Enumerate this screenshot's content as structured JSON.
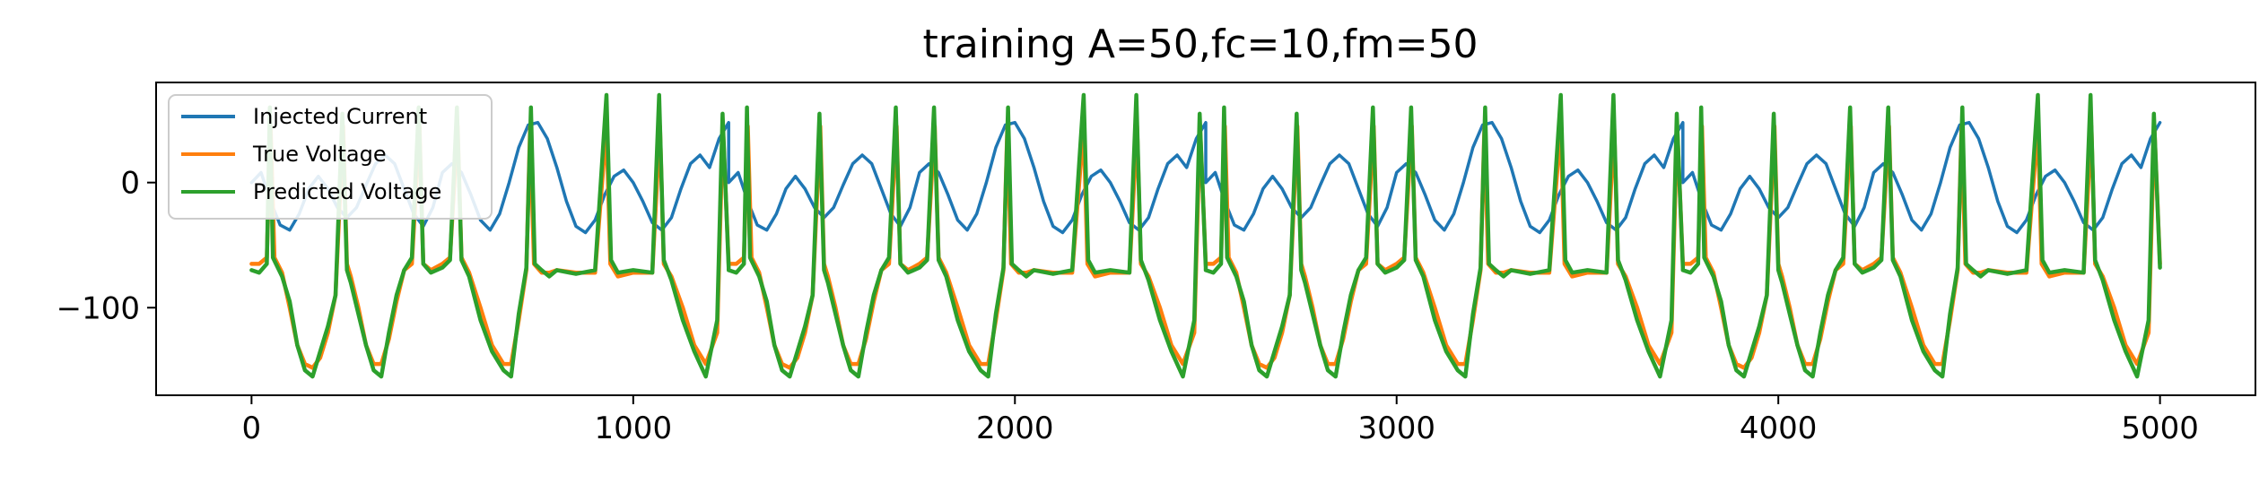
{
  "chart_data": {
    "type": "line",
    "title": "training A=50,fc=10,fm=50",
    "xlabel": "",
    "ylabel": "",
    "xlim": [
      -250,
      5250
    ],
    "ylim": [
      -170,
      80
    ],
    "xticks": [
      0,
      1000,
      2000,
      3000,
      4000,
      5000
    ],
    "xtick_labels": [
      "0",
      "1000",
      "2000",
      "3000",
      "4000",
      "5000"
    ],
    "yticks": [
      0,
      -100
    ],
    "ytick_labels": [
      "0",
      "−100"
    ],
    "grid": false,
    "legend_position": "top-left",
    "series": [
      {
        "name": "Injected Current",
        "color": "#1f77b4",
        "points": [
          [
            0,
            0
          ],
          [
            25,
            8
          ],
          [
            50,
            -15
          ],
          [
            75,
            -34
          ],
          [
            100,
            -38
          ],
          [
            125,
            -25
          ],
          [
            150,
            -5
          ],
          [
            175,
            5
          ],
          [
            200,
            -5
          ],
          [
            225,
            -20
          ],
          [
            250,
            -28
          ],
          [
            275,
            -20
          ],
          [
            300,
            -2
          ],
          [
            325,
            15
          ],
          [
            350,
            22
          ],
          [
            375,
            15
          ],
          [
            400,
            -5
          ],
          [
            425,
            -25
          ],
          [
            450,
            -35
          ],
          [
            475,
            -20
          ],
          [
            500,
            8
          ],
          [
            525,
            15
          ],
          [
            550,
            8
          ],
          [
            575,
            -10
          ],
          [
            600,
            -30
          ],
          [
            625,
            -38
          ],
          [
            650,
            -25
          ],
          [
            675,
            0
          ],
          [
            700,
            28
          ],
          [
            725,
            46
          ],
          [
            750,
            48
          ],
          [
            775,
            35
          ],
          [
            800,
            12
          ],
          [
            825,
            -15
          ],
          [
            850,
            -35
          ],
          [
            875,
            -40
          ],
          [
            900,
            -30
          ],
          [
            925,
            -10
          ],
          [
            950,
            5
          ],
          [
            975,
            10
          ],
          [
            1000,
            0
          ],
          [
            1025,
            -15
          ],
          [
            1050,
            -32
          ],
          [
            1075,
            -38
          ],
          [
            1100,
            -28
          ],
          [
            1125,
            -5
          ],
          [
            1150,
            15
          ],
          [
            1175,
            22
          ],
          [
            1200,
            12
          ],
          [
            1225,
            35
          ],
          [
            1250,
            48
          ]
        ]
      },
      {
        "name": "True Voltage",
        "color": "#ff7f0e",
        "points": [
          [
            0,
            -65
          ],
          [
            20,
            -65
          ],
          [
            40,
            -60
          ],
          [
            50,
            45
          ],
          [
            60,
            -60
          ],
          [
            80,
            -72
          ],
          [
            100,
            -100
          ],
          [
            120,
            -130
          ],
          [
            140,
            -145
          ],
          [
            160,
            -148
          ],
          [
            180,
            -140
          ],
          [
            200,
            -120
          ],
          [
            220,
            -90
          ],
          [
            240,
            45
          ],
          [
            250,
            -65
          ],
          [
            260,
            -75
          ],
          [
            280,
            -100
          ],
          [
            300,
            -130
          ],
          [
            320,
            -145
          ],
          [
            340,
            -145
          ],
          [
            360,
            -125
          ],
          [
            380,
            -95
          ],
          [
            400,
            -70
          ],
          [
            420,
            -65
          ],
          [
            440,
            45
          ],
          [
            450,
            -65
          ],
          [
            470,
            -70
          ],
          [
            500,
            -65
          ],
          [
            520,
            -60
          ],
          [
            540,
            45
          ],
          [
            550,
            -60
          ],
          [
            570,
            -72
          ],
          [
            600,
            -100
          ],
          [
            630,
            -130
          ],
          [
            660,
            -145
          ],
          [
            680,
            -145
          ],
          [
            700,
            -110
          ],
          [
            720,
            -70
          ],
          [
            730,
            45
          ],
          [
            740,
            -65
          ],
          [
            760,
            -72
          ],
          [
            780,
            -72
          ],
          [
            800,
            -70
          ],
          [
            850,
            -72
          ],
          [
            900,
            -72
          ],
          [
            930,
            45
          ],
          [
            940,
            -65
          ],
          [
            960,
            -75
          ],
          [
            1000,
            -72
          ],
          [
            1050,
            -72
          ],
          [
            1070,
            45
          ],
          [
            1080,
            -65
          ],
          [
            1100,
            -75
          ],
          [
            1130,
            -100
          ],
          [
            1160,
            -130
          ],
          [
            1190,
            -145
          ],
          [
            1220,
            -120
          ],
          [
            1235,
            45
          ],
          [
            1250,
            -65
          ]
        ]
      },
      {
        "name": "Predicted Voltage",
        "color": "#2ca02c",
        "points": [
          [
            0,
            -70
          ],
          [
            20,
            -72
          ],
          [
            40,
            -65
          ],
          [
            48,
            60
          ],
          [
            56,
            -60
          ],
          [
            80,
            -75
          ],
          [
            100,
            -95
          ],
          [
            120,
            -130
          ],
          [
            140,
            -150
          ],
          [
            160,
            -155
          ],
          [
            180,
            -135
          ],
          [
            200,
            -115
          ],
          [
            220,
            -90
          ],
          [
            238,
            55
          ],
          [
            250,
            -70
          ],
          [
            260,
            -80
          ],
          [
            280,
            -105
          ],
          [
            300,
            -130
          ],
          [
            320,
            -150
          ],
          [
            340,
            -155
          ],
          [
            360,
            -120
          ],
          [
            380,
            -90
          ],
          [
            400,
            -70
          ],
          [
            420,
            -60
          ],
          [
            438,
            60
          ],
          [
            450,
            -65
          ],
          [
            470,
            -72
          ],
          [
            500,
            -68
          ],
          [
            520,
            -62
          ],
          [
            538,
            60
          ],
          [
            550,
            -62
          ],
          [
            570,
            -75
          ],
          [
            600,
            -110
          ],
          [
            630,
            -135
          ],
          [
            660,
            -150
          ],
          [
            680,
            -155
          ],
          [
            700,
            -105
          ],
          [
            720,
            -68
          ],
          [
            732,
            60
          ],
          [
            742,
            -65
          ],
          [
            760,
            -70
          ],
          [
            780,
            -75
          ],
          [
            800,
            -70
          ],
          [
            850,
            -73
          ],
          [
            900,
            -70
          ],
          [
            930,
            70
          ],
          [
            942,
            -62
          ],
          [
            960,
            -72
          ],
          [
            1000,
            -70
          ],
          [
            1050,
            -72
          ],
          [
            1068,
            70
          ],
          [
            1080,
            -62
          ],
          [
            1100,
            -78
          ],
          [
            1130,
            -110
          ],
          [
            1160,
            -135
          ],
          [
            1190,
            -155
          ],
          [
            1220,
            -110
          ],
          [
            1234,
            55
          ],
          [
            1250,
            -68
          ]
        ]
      }
    ]
  }
}
